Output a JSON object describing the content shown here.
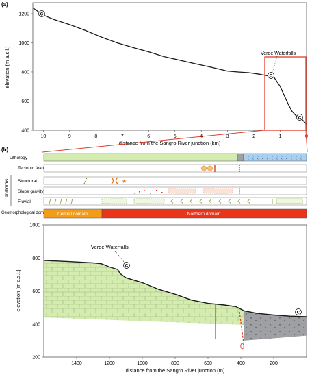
{
  "panel_a": {
    "label": "(a)",
    "ylabel": "elevation (m a.s.l.)",
    "xlabel": "distance from the Sangro River junction (km)",
    "y_ticks": [
      "1200",
      "1000",
      "800",
      "600",
      "400"
    ],
    "x_ticks": [
      "10",
      "9",
      "8",
      "7",
      "6",
      "5",
      "4",
      "3",
      "2",
      "1",
      "0"
    ],
    "annotation": "Verde Waterfalls",
    "markers": [
      "C",
      "C",
      "C"
    ],
    "profile_km_m": [
      [
        10.4,
        1240
      ],
      [
        10.2,
        1215
      ],
      [
        10,
        1190
      ],
      [
        9.6,
        1160
      ],
      [
        9,
        1125
      ],
      [
        8.4,
        1085
      ],
      [
        7.8,
        1040
      ],
      [
        7.2,
        1000
      ],
      [
        6.6,
        968
      ],
      [
        6,
        938
      ],
      [
        5.4,
        905
      ],
      [
        4.8,
        880
      ],
      [
        4.2,
        855
      ],
      [
        3.6,
        832
      ],
      [
        3,
        806
      ],
      [
        2.6,
        800
      ],
      [
        2.2,
        795
      ],
      [
        1.8,
        785
      ],
      [
        1.5,
        775
      ],
      [
        1.25,
        768
      ],
      [
        1.15,
        740
      ],
      [
        1.0,
        700
      ],
      [
        0.85,
        640
      ],
      [
        0.7,
        580
      ],
      [
        0.55,
        530
      ],
      [
        0.4,
        500
      ],
      [
        0.2,
        480
      ],
      [
        0.05,
        450
      ],
      [
        0,
        440
      ]
    ]
  },
  "panel_b": {
    "label": "(b)",
    "group_label": "Landforms",
    "rows": [
      "Lithology",
      "Tectonic features",
      "Structural",
      "Slope gravity",
      "Fluvial"
    ],
    "domains_label": "Geomorphological domains",
    "central_domain": "Central domain",
    "northern_domain": "Northern domain"
  },
  "panel_c": {
    "ylabel": "elevation (m a.s.l.)",
    "xlabel": "distance from the Sangro River junction (m)",
    "y_ticks": [
      "1000",
      "800",
      "600",
      "400",
      "200"
    ],
    "x_ticks": [
      "1400",
      "1200",
      "1000",
      "800",
      "600",
      "400",
      "200"
    ],
    "annotation": "Verde Waterfalls",
    "markers": [
      "C",
      "C"
    ],
    "profile_m_m": [
      [
        1600,
        785
      ],
      [
        1450,
        778
      ],
      [
        1300,
        770
      ],
      [
        1250,
        765
      ],
      [
        1200,
        745
      ],
      [
        1150,
        730
      ],
      [
        1135,
        705
      ],
      [
        1100,
        680
      ],
      [
        1000,
        650
      ],
      [
        900,
        610
      ],
      [
        800,
        580
      ],
      [
        700,
        545
      ],
      [
        600,
        525
      ],
      [
        500,
        515
      ],
      [
        430,
        505
      ],
      [
        380,
        480
      ],
      [
        300,
        465
      ],
      [
        200,
        455
      ],
      [
        100,
        448
      ],
      [
        0,
        445
      ]
    ]
  },
  "colors": {
    "limestone": "#d5ecb0",
    "profile": "#1a1a1a",
    "frame": "#e03c2a",
    "central": "#f39c1a",
    "northern": "#e8351c",
    "alluvium": "#9ea0a3",
    "blue_unit": "#a9d0ee"
  }
}
